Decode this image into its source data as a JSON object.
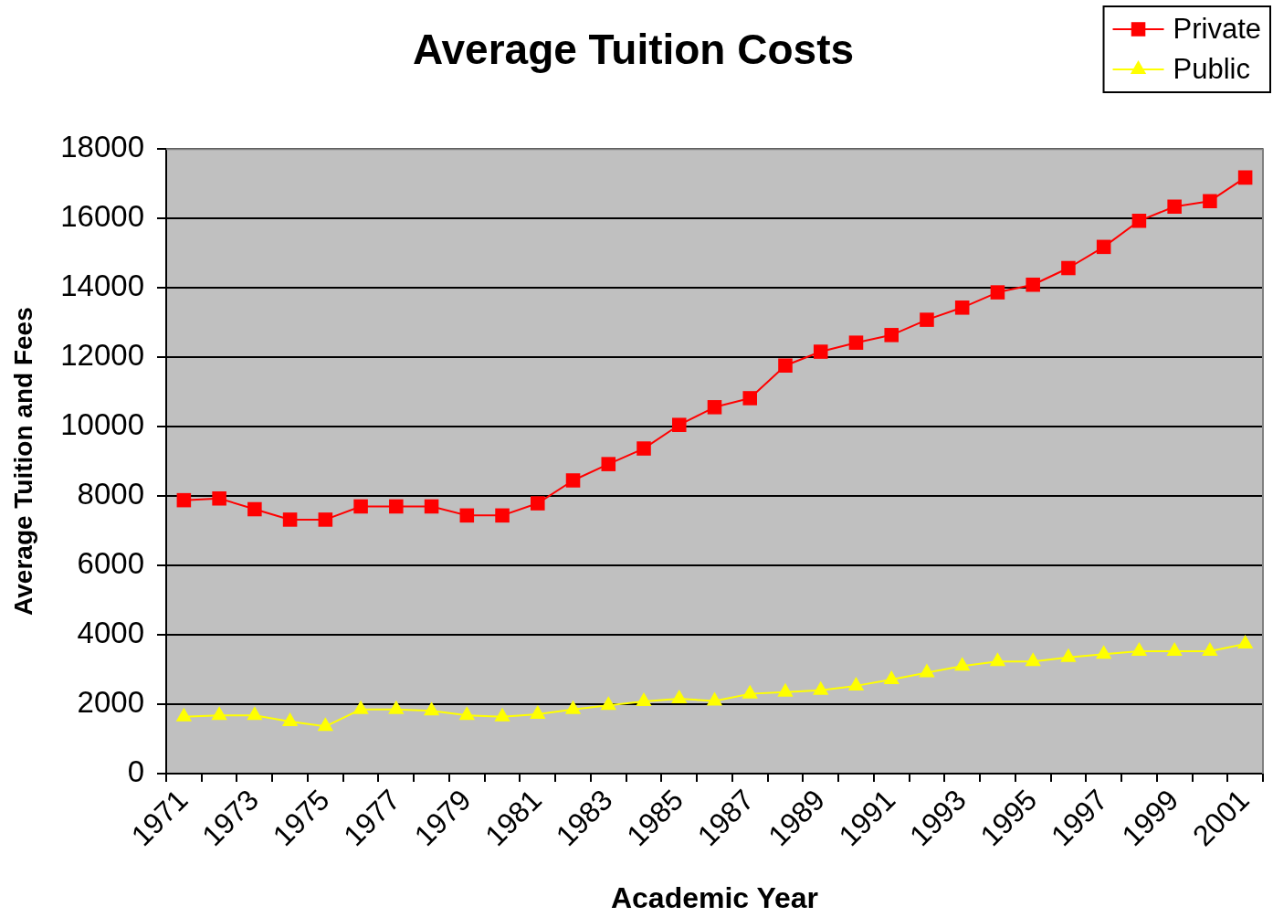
{
  "chart_data": {
    "type": "line",
    "title": "Average Tuition Costs",
    "xlabel": "Academic Year",
    "ylabel": "Average Tuition and Fees",
    "categories": [
      "1971",
      null,
      "1973",
      null,
      "1975",
      null,
      "1977",
      null,
      "1979",
      null,
      "1981",
      null,
      "1983",
      null,
      "1985",
      null,
      "1987",
      null,
      "1989",
      null,
      "1991",
      null,
      "1993",
      null,
      "1995",
      null,
      "1997",
      null,
      "1999",
      null,
      "2001"
    ],
    "series": [
      {
        "name": "Private",
        "color": "#ff0000",
        "marker": "square",
        "values": [
          7880,
          7930,
          7620,
          7320,
          7320,
          7700,
          7700,
          7700,
          7440,
          7440,
          7790,
          8450,
          8920,
          9370,
          10050,
          10560,
          10820,
          11760,
          12160,
          12420,
          12640,
          13080,
          13430,
          13870,
          14090,
          14570,
          15180,
          15930,
          16340,
          16500,
          17180
        ]
      },
      {
        "name": "Public",
        "color": "#ffff00",
        "marker": "triangle",
        "values": [
          1640,
          1680,
          1680,
          1500,
          1360,
          1850,
          1850,
          1810,
          1680,
          1640,
          1710,
          1850,
          1970,
          2080,
          2160,
          2090,
          2300,
          2350,
          2400,
          2530,
          2710,
          2910,
          3100,
          3230,
          3230,
          3350,
          3440,
          3530,
          3530,
          3530,
          3740
        ]
      }
    ],
    "ylim": [
      0,
      18000
    ],
    "yticks": [
      0,
      2000,
      4000,
      6000,
      8000,
      10000,
      12000,
      14000,
      16000,
      18000
    ],
    "grid": "y",
    "legend": "top right"
  }
}
